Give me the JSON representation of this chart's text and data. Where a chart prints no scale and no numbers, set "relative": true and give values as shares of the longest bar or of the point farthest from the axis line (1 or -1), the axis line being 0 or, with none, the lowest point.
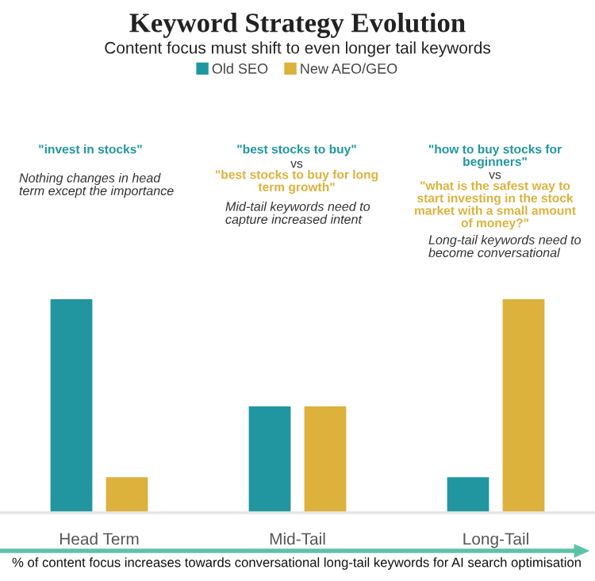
{
  "chart_data": {
    "type": "bar",
    "title": "Keyword Strategy Evolution",
    "subtitle": "Content focus must shift to even longer tail keywords",
    "categories": [
      "Head Term",
      "Mid-Tail",
      "Long-Tail"
    ],
    "series": [
      {
        "name": "Old SEO",
        "color": "#2196a0",
        "values": [
          1,
          0.5,
          0.17
        ]
      },
      {
        "name": "New AEO/GEO",
        "color": "#dcb13c",
        "values": [
          0.17,
          0.5,
          1
        ]
      }
    ],
    "relative": true,
    "legend": "top",
    "grid": false,
    "annotations": [
      "\"invest in stocks\"",
      "Nothing changes in head\nterm except the importance",
      "\"best stocks to buy\"",
      "vs",
      "\"best stocks to buy for long\nterm growth\"",
      "Mid-tail keywords need to\ncapture increased intent",
      "\"how to buy stocks for\nbeginners\"",
      "vs",
      "\"what is the safest way to\nstart investing in the stock\nmarket with a small amount\nof money?\"",
      "Long-tail keywords need to\nbecome conversational",
      "% of content focus increases towards conversational long-tail keywords for AI search optimisation"
    ]
  }
}
